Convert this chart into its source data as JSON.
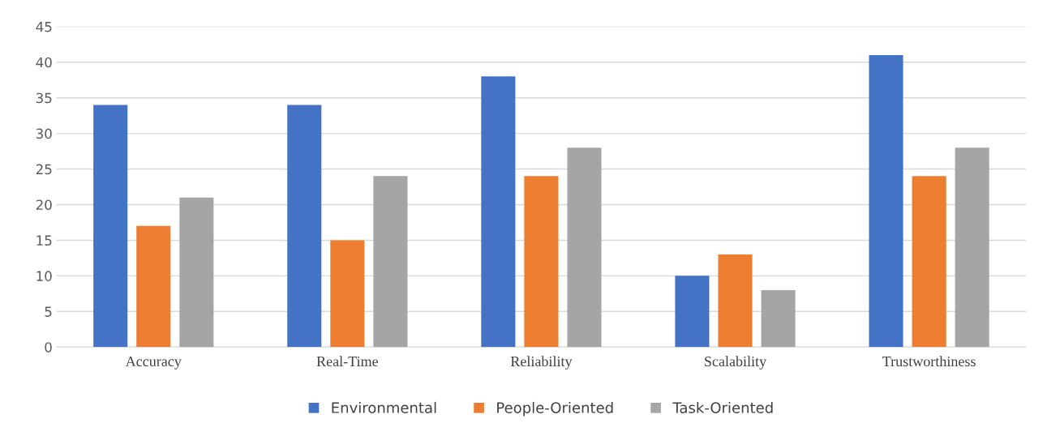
{
  "chart_data": {
    "type": "bar",
    "categories": [
      "Accuracy",
      "Real-Time",
      "Reliability",
      "Scalability",
      "Trustworthiness"
    ],
    "series": [
      {
        "name": "Environmental",
        "color": "#4472c4",
        "values": [
          34,
          34,
          38,
          10,
          41
        ]
      },
      {
        "name": "People-Oriented",
        "color": "#ed7d31",
        "values": [
          17,
          15,
          24,
          13,
          24
        ]
      },
      {
        "name": "Task-Oriented",
        "color": "#a5a5a5",
        "values": [
          21,
          24,
          28,
          8,
          28
        ]
      }
    ],
    "ylim": [
      0,
      45
    ],
    "yticks": [
      0,
      5,
      10,
      15,
      20,
      25,
      30,
      35,
      40,
      45
    ],
    "grid": "y",
    "legend": "bottom"
  }
}
